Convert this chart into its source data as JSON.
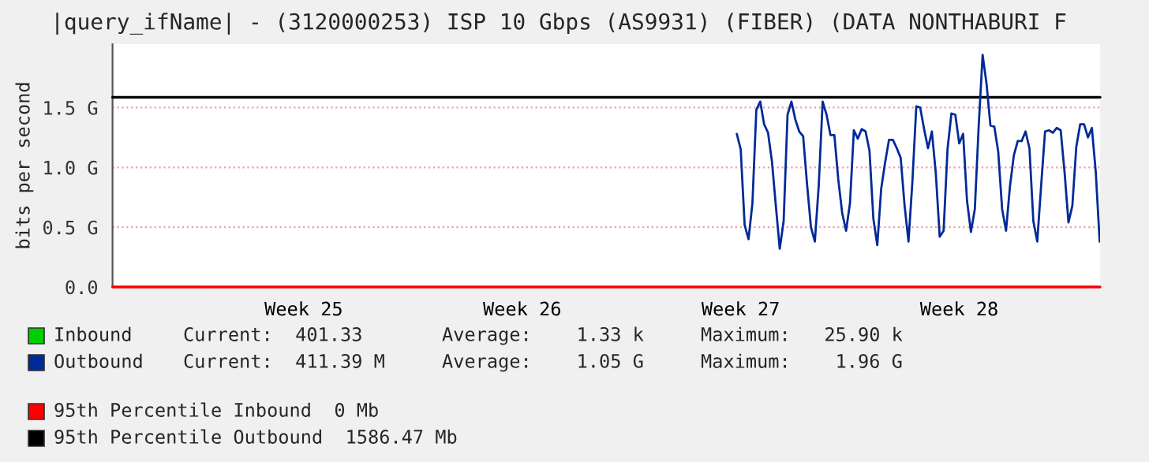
{
  "chart_data": {
    "type": "line",
    "title": "|query_ifName| - (3120000253) ISP 10 Gbps (AS9931) (FIBER) (DATA NONTHABURI F",
    "ylabel": "bits per second",
    "categories": [
      null,
      null,
      null,
      null,
      null,
      null,
      null,
      null,
      null,
      null,
      null,
      null,
      null,
      null,
      null,
      null,
      null,
      null,
      null,
      null,
      null,
      null,
      null,
      null,
      null,
      null,
      null,
      null,
      null,
      null,
      null,
      null,
      null,
      null,
      null,
      null,
      null,
      null,
      null,
      null,
      null,
      null,
      null,
      null,
      null,
      null,
      null,
      null,
      null,
      "Week 25",
      null,
      null,
      null,
      null,
      null,
      null,
      null,
      null,
      null,
      null,
      null,
      null,
      null,
      null,
      null,
      null,
      null,
      null,
      null,
      null,
      null,
      null,
      null,
      null,
      null,
      null,
      null,
      null,
      null,
      null,
      null,
      null,
      null,
      null,
      null,
      null,
      null,
      null,
      null,
      null,
      null,
      null,
      null,
      null,
      null,
      null,
      null,
      null,
      null,
      null,
      null,
      null,
      null,
      null,
      null,
      "Week 26",
      null,
      null,
      null,
      null,
      null,
      null,
      null,
      null,
      null,
      null,
      null,
      null,
      null,
      null,
      null,
      null,
      null,
      null,
      null,
      null,
      null,
      null,
      null,
      null,
      null,
      null,
      null,
      null,
      null,
      null,
      null,
      null,
      null,
      null,
      null,
      null,
      null,
      null,
      null,
      null,
      null,
      null,
      null,
      null,
      null,
      null,
      null,
      null,
      null,
      null,
      null,
      null,
      null,
      null,
      null,
      "Week 27",
      null,
      null,
      null,
      null,
      null,
      null,
      null,
      null,
      null,
      null,
      null,
      null,
      null,
      null,
      null,
      null,
      null,
      null,
      null,
      null,
      null,
      null,
      null,
      null,
      null,
      null,
      null,
      null,
      null,
      null,
      null,
      null,
      null,
      null,
      null,
      null,
      null,
      null,
      null,
      null,
      null,
      null,
      null,
      null,
      null,
      null,
      null,
      null,
      null,
      null,
      null,
      null,
      null,
      null,
      null,
      "Week 28",
      null,
      null,
      null,
      null,
      null,
      null,
      null,
      null,
      null,
      null,
      null,
      null,
      null,
      null,
      null,
      null,
      null,
      null,
      null,
      null,
      null,
      null,
      null,
      null,
      null,
      null,
      null,
      null,
      null,
      null,
      null,
      null,
      null,
      null,
      null,
      null
    ],
    "ylim": [
      0,
      2.03
    ],
    "yticks": [
      {
        "value": 0,
        "label": "0.0"
      },
      {
        "value": 0.5,
        "label": "0.5 G"
      },
      {
        "value": 1.0,
        "label": "1.0 G"
      },
      {
        "value": 1.5,
        "label": "1.5 G"
      }
    ],
    "grid": "y",
    "legend": "bottom",
    "series": [
      {
        "name": "Inbound",
        "color": "#00cf00",
        "values": [
          null,
          null,
          null,
          null,
          null,
          null,
          null,
          null,
          null,
          null,
          null,
          null,
          null,
          null,
          null,
          null,
          null,
          null,
          null,
          null,
          null,
          null,
          null,
          null,
          null,
          null,
          null,
          null,
          null,
          null,
          null,
          null,
          null,
          null,
          null,
          null,
          null,
          null,
          null,
          null,
          null,
          null,
          null,
          null,
          null,
          null,
          null,
          null,
          null,
          null,
          null,
          null,
          null,
          null,
          null,
          null,
          null,
          null,
          null,
          null,
          null,
          null,
          null,
          null,
          null,
          null,
          null,
          null,
          null,
          null,
          null,
          null,
          null,
          null,
          null,
          null,
          null,
          null,
          null,
          null,
          null,
          null,
          null,
          null,
          null,
          null,
          null,
          null,
          null,
          null,
          null,
          null,
          null,
          null,
          null,
          null,
          null,
          null,
          null,
          null,
          null,
          null,
          null,
          null,
          null,
          null,
          null,
          null,
          null,
          null,
          null,
          null,
          null,
          null,
          null,
          null,
          null,
          null,
          null,
          null,
          null,
          null,
          null,
          null,
          null,
          null,
          null,
          null,
          null,
          null,
          null,
          null,
          null,
          null,
          null,
          null,
          null,
          null,
          null,
          null,
          null,
          null,
          null,
          null,
          null,
          null,
          null,
          null,
          null,
          null,
          null,
          null,
          null,
          null,
          null,
          null,
          null,
          null,
          null,
          null,
          null,
          null,
          null,
          null,
          null,
          null,
          null,
          null,
          null,
          null,
          null,
          null,
          null,
          null,
          null,
          null,
          null,
          null,
          null,
          null,
          null,
          null,
          null,
          null,
          null,
          null,
          null,
          null,
          null,
          null,
          null,
          null,
          null,
          null,
          null,
          null,
          null,
          null,
          null,
          null,
          null,
          null,
          null,
          null,
          null,
          null,
          null,
          null,
          null,
          null,
          null,
          null,
          null,
          null,
          null,
          null,
          null,
          null,
          null,
          null,
          null,
          null,
          null,
          null,
          null,
          null,
          null,
          null,
          null,
          null,
          null,
          null,
          null,
          null,
          null,
          null,
          null,
          null,
          null,
          null,
          null,
          null,
          null,
          null,
          null,
          null,
          null,
          null,
          null,
          null,
          null,
          null,
          null,
          null
        ]
      },
      {
        "name": "Outbound",
        "color": "#002a97",
        "values": [
          null,
          null,
          null,
          null,
          null,
          null,
          null,
          null,
          null,
          null,
          null,
          null,
          null,
          null,
          null,
          null,
          null,
          null,
          null,
          null,
          null,
          null,
          null,
          null,
          null,
          null,
          null,
          null,
          null,
          null,
          null,
          null,
          null,
          null,
          null,
          null,
          null,
          null,
          null,
          null,
          null,
          null,
          null,
          null,
          null,
          null,
          null,
          null,
          null,
          null,
          null,
          null,
          null,
          null,
          null,
          null,
          null,
          null,
          null,
          null,
          null,
          null,
          null,
          null,
          null,
          null,
          null,
          null,
          null,
          null,
          null,
          null,
          null,
          null,
          null,
          null,
          null,
          null,
          null,
          null,
          null,
          null,
          null,
          null,
          null,
          null,
          null,
          null,
          null,
          null,
          null,
          null,
          null,
          null,
          null,
          null,
          null,
          null,
          null,
          null,
          null,
          null,
          null,
          null,
          null,
          null,
          null,
          null,
          null,
          null,
          null,
          null,
          null,
          null,
          null,
          null,
          null,
          null,
          null,
          null,
          null,
          null,
          null,
          null,
          null,
          null,
          null,
          null,
          null,
          null,
          null,
          null,
          null,
          null,
          null,
          null,
          null,
          null,
          null,
          null,
          null,
          null,
          null,
          null,
          null,
          null,
          null,
          null,
          null,
          null,
          null,
          null,
          null,
          null,
          null,
          null,
          null,
          null,
          null,
          null,
          1.28,
          1.15,
          0.52,
          0.4,
          0.7,
          1.48,
          1.55,
          1.36,
          1.29,
          1.05,
          0.68,
          0.32,
          0.55,
          1.44,
          1.55,
          1.4,
          1.3,
          1.26,
          0.86,
          0.5,
          0.38,
          0.85,
          1.55,
          1.44,
          1.27,
          1.27,
          0.9,
          0.62,
          0.47,
          0.7,
          1.31,
          1.24,
          1.32,
          1.3,
          1.14,
          0.57,
          0.35,
          0.82,
          1.04,
          1.23,
          1.23,
          1.16,
          1.08,
          0.68,
          0.38,
          0.88,
          1.51,
          1.5,
          1.32,
          1.16,
          1.3,
          0.95,
          0.42,
          0.47,
          1.15,
          1.45,
          1.44,
          1.2,
          1.28,
          0.72,
          0.46,
          0.65,
          1.35,
          1.94,
          1.7,
          1.35,
          1.34,
          1.13,
          0.65,
          0.47,
          0.84,
          1.1,
          1.22,
          1.22,
          1.3,
          1.16,
          0.55,
          0.38,
          0.85,
          1.3,
          1.31,
          1.29,
          1.33,
          1.31,
          0.96,
          0.54,
          0.68,
          1.17,
          1.36,
          1.36,
          1.25,
          1.33,
          0.96,
          0.38
        ]
      }
    ],
    "ref_lines": [
      {
        "axis": "y",
        "value": 0,
        "label": "95th Percentile Inbound  0 Mb",
        "color": "#ff0000"
      },
      {
        "axis": "y",
        "value": 1.58647,
        "label": "95th Percentile Outbound  1586.47 Mb",
        "color": "#000000"
      }
    ],
    "annotations": [
      "Current:  401.33",
      "Average:    1.33 k",
      "Maximum:   25.90 k",
      "Current:  411.39 M",
      "Average:    1.05 G",
      "Maximum:    1.96 G"
    ]
  }
}
